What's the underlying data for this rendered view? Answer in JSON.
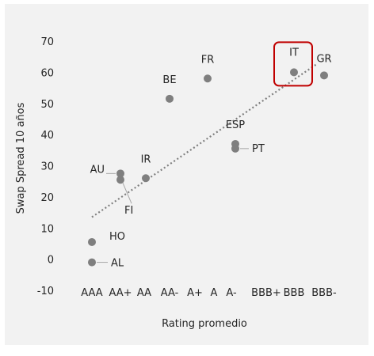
{
  "chart_data": {
    "type": "scatter",
    "title": "",
    "xlabel": "Rating promedio",
    "ylabel": "Swap Spread 10 años",
    "categories": [
      "AAA",
      "AA+",
      "AA",
      "AA-",
      "A+",
      "A",
      "A-",
      "BBB+",
      "BBB",
      "BBB-"
    ],
    "ylim": [
      -10,
      70
    ],
    "yticks": [
      -10,
      0,
      10,
      20,
      30,
      40,
      50,
      60,
      70
    ],
    "grid": false,
    "legend": "none",
    "points": [
      {
        "label": "HO",
        "x": "AAA",
        "y": 5.5
      },
      {
        "label": "AL",
        "x": "AAA",
        "y": -1
      },
      {
        "label": "AU",
        "x": "AA+",
        "y": 27.5
      },
      {
        "label": "FI",
        "x": "AA+",
        "y": 25.5
      },
      {
        "label": "IR",
        "x": "AA",
        "y": 26
      },
      {
        "label": "BE",
        "x": "AA-",
        "y": 51.5
      },
      {
        "label": "FR",
        "x": "A",
        "y": 58
      },
      {
        "label": "ESP",
        "x": "A-",
        "y": 37
      },
      {
        "label": "PT",
        "x": "A-",
        "y": 35.5
      },
      {
        "label": "IT",
        "x": "BBB",
        "y": 60,
        "highlighted": true
      },
      {
        "label": "GR",
        "x": "BBB-",
        "y": 59
      }
    ],
    "trendline": {
      "style": "dotted",
      "from": {
        "x": "AAA",
        "y": 13.5
      },
      "to": {
        "x": "BBB-",
        "y": 62.5
      }
    },
    "colors": {
      "points": "#7f7f7f",
      "trendline": "#7f7f7f",
      "highlight": "#c00000",
      "text": "#262626",
      "background": "#f2f2f2"
    }
  }
}
